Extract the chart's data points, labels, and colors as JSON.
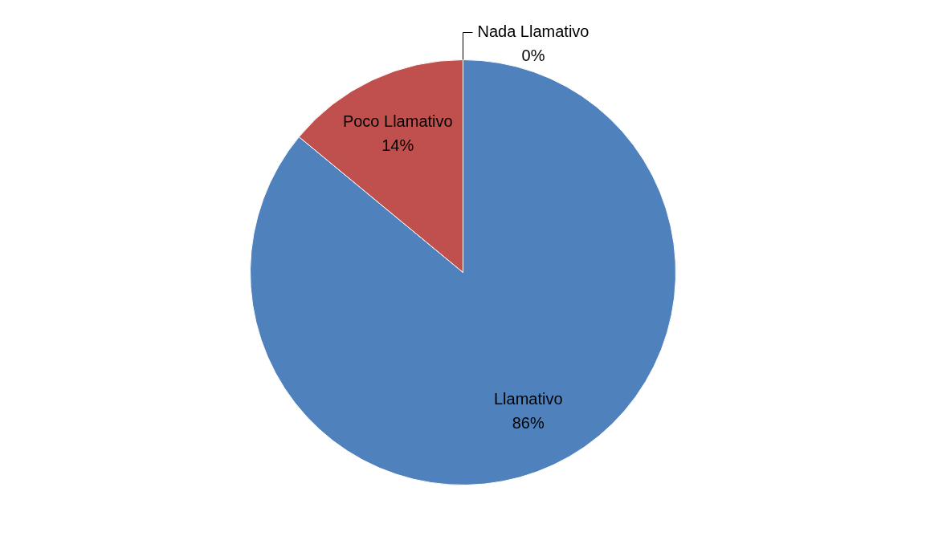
{
  "chart_data": {
    "type": "pie",
    "categories": [
      "Llamativo",
      "Poco Llamativo",
      "Nada Llamativo"
    ],
    "values": [
      86,
      14,
      0
    ],
    "colors": [
      "#4f81bd",
      "#c0504d",
      "#9bbb59"
    ],
    "value_labels": [
      "86%",
      "14%",
      "0%"
    ],
    "legend": false
  }
}
